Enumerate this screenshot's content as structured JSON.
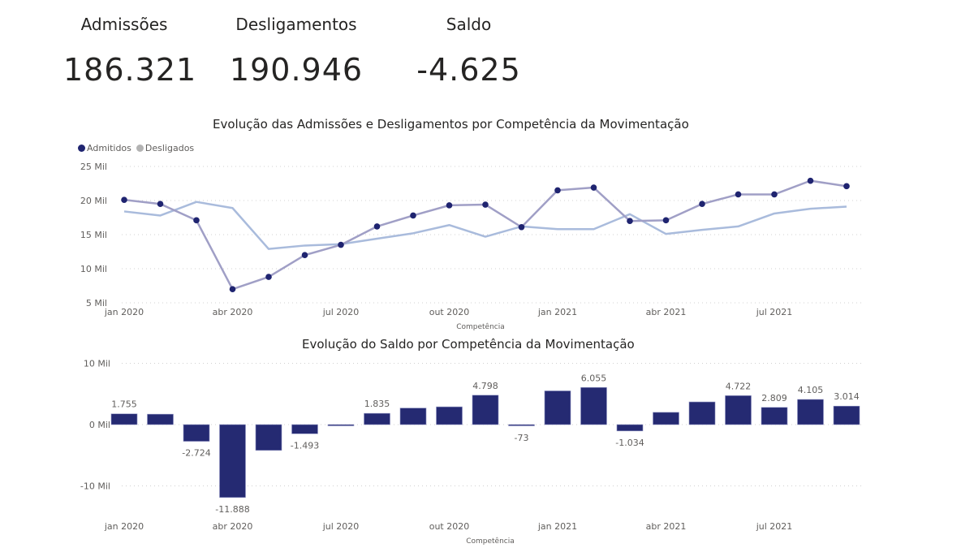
{
  "kpis": [
    {
      "label": "Admissões",
      "value": "186.321"
    },
    {
      "label": "Desligamentos",
      "value": "190.946"
    },
    {
      "label": "Saldo",
      "value": "-4.625"
    }
  ],
  "colors": {
    "admitidos_line": "#a09fc6",
    "admitidos_marker": "#1f2470",
    "desligados_line": "#a9bbdc",
    "legend_desligados": "#b3b3b3",
    "bar": "#252a72",
    "text": "#252423",
    "axis_text": "#605e5c",
    "grid": "#d0d0d0"
  },
  "chart_data": [
    {
      "type": "line",
      "title": "Evolução das Admissões e Desligamentos por Competência da Movimentação",
      "xlabel": "Competência",
      "ylabel": "",
      "x": [
        "jan 2020",
        "fev 2020",
        "mar 2020",
        "abr 2020",
        "mai 2020",
        "jun 2020",
        "jul 2020",
        "ago 2020",
        "set 2020",
        "out 2020",
        "nov 2020",
        "dez 2020",
        "jan 2021",
        "fev 2021",
        "mar 2021",
        "abr 2021",
        "mai 2021",
        "jun 2021",
        "jul 2021",
        "ago 2021",
        "set 2021"
      ],
      "x_tick_labels": [
        "jan 2020",
        "abr 2020",
        "jul 2020",
        "out 2020",
        "jan 2021",
        "abr 2021",
        "jul 2021"
      ],
      "x_tick_indices": [
        0,
        3,
        6,
        9,
        12,
        15,
        18
      ],
      "y_ticks": [
        5,
        10,
        15,
        20,
        25
      ],
      "y_tick_labels": [
        "5 Mil",
        "10 Mil",
        "15 Mil",
        "20 Mil",
        "25 Mil"
      ],
      "ylim": [
        5,
        25
      ],
      "unit": "Mil",
      "grid": true,
      "legend": {
        "placement": "top-left",
        "entries": [
          "Admitidos",
          "Desligados"
        ]
      },
      "series": [
        {
          "name": "Admitidos",
          "values": [
            20.1,
            19.5,
            17.1,
            7.0,
            8.8,
            12.0,
            13.5,
            16.2,
            17.8,
            19.3,
            19.4,
            16.1,
            21.5,
            21.9,
            17.0,
            17.1,
            19.5,
            20.9,
            20.9,
            22.9,
            22.1
          ],
          "markers": true
        },
        {
          "name": "Desligados",
          "values": [
            18.4,
            17.8,
            19.8,
            18.9,
            12.9,
            13.4,
            13.6,
            14.4,
            15.2,
            16.4,
            14.7,
            16.2,
            15.8,
            15.8,
            18.0,
            15.1,
            15.7,
            16.2,
            18.1,
            18.8,
            19.1
          ],
          "markers": false
        }
      ]
    },
    {
      "type": "bar",
      "title": "Evolução do Saldo por Competência da Movimentação",
      "xlabel": "Competência",
      "ylabel": "",
      "categories": [
        "jan 2020",
        "fev 2020",
        "mar 2020",
        "abr 2020",
        "mai 2020",
        "jun 2020",
        "jul 2020",
        "ago 2020",
        "set 2020",
        "out 2020",
        "nov 2020",
        "dez 2020",
        "jan 2021",
        "fev 2021",
        "mar 2021",
        "abr 2021",
        "mai 2021",
        "jun 2021",
        "jul 2021",
        "ago 2021",
        "set 2021"
      ],
      "x_tick_labels": [
        "jan 2020",
        "abr 2020",
        "jul 2020",
        "out 2020",
        "jan 2021",
        "abr 2021",
        "jul 2021"
      ],
      "x_tick_indices": [
        0,
        3,
        6,
        9,
        12,
        15,
        18
      ],
      "values": [
        1755,
        1700,
        -2724,
        -11888,
        -4200,
        -1493,
        -100,
        1835,
        2700,
        2900,
        4798,
        -73,
        5500,
        6055,
        -1034,
        2000,
        3700,
        4722,
        2809,
        4105,
        3014
      ],
      "data_labels": [
        "1.755",
        "",
        "-2.724",
        "-11.888",
        "",
        "-1.493",
        "",
        "1.835",
        "",
        "",
        "4.798",
        "-73",
        "",
        "6.055",
        "-1.034",
        "",
        "",
        "4.722",
        "2.809",
        "4.105",
        "3.014"
      ],
      "y_ticks": [
        -10000,
        0,
        10000
      ],
      "y_tick_labels": [
        "-10 Mil",
        "0 Mil",
        "10 Mil"
      ],
      "ylim": [
        -12500,
        10000
      ],
      "grid": true,
      "legend": null
    }
  ]
}
